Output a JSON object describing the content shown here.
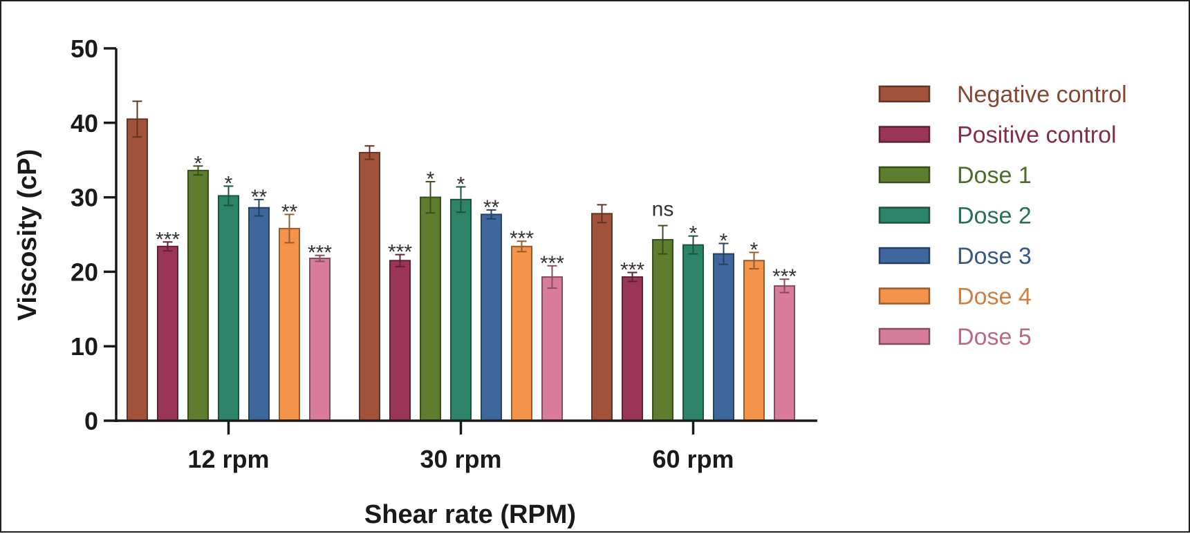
{
  "chart_data": {
    "type": "bar",
    "xlabel": "Shear rate (RPM)",
    "ylabel": "Viscosity (cP)",
    "ylim": [
      0,
      50
    ],
    "yticks": [
      "0",
      "10",
      "20",
      "30",
      "40",
      "50"
    ],
    "categories": [
      "12 rpm",
      "30 rpm",
      "60 rpm"
    ],
    "legend_position": "right",
    "grid": false,
    "series": [
      {
        "name": "Negative control",
        "color": "#A0523A",
        "values": [
          40.5,
          36.0,
          27.8
        ],
        "errors": [
          2.4,
          0.9,
          1.2
        ],
        "significance": [
          "",
          "",
          ""
        ]
      },
      {
        "name": "Positive control",
        "color": "#9B3558",
        "values": [
          23.4,
          21.5,
          19.3
        ],
        "errors": [
          0.6,
          0.8,
          0.6
        ],
        "significance": [
          "***",
          "***",
          "***"
        ]
      },
      {
        "name": "Dose 1",
        "color": "#5C7E2E",
        "values": [
          33.6,
          30.0,
          24.3
        ],
        "errors": [
          0.6,
          2.1,
          1.9
        ],
        "significance": [
          "*",
          "*",
          "ns"
        ]
      },
      {
        "name": "Dose 2",
        "color": "#2B8468",
        "values": [
          30.2,
          29.7,
          23.6
        ],
        "errors": [
          1.3,
          1.7,
          1.2
        ],
        "significance": [
          "*",
          "*",
          "*"
        ]
      },
      {
        "name": "Dose 3",
        "color": "#3E679E",
        "values": [
          28.6,
          27.7,
          22.4
        ],
        "errors": [
          1.1,
          0.6,
          1.4
        ],
        "significance": [
          "**",
          "**",
          "*"
        ]
      },
      {
        "name": "Dose 4",
        "color": "#F3944A",
        "values": [
          25.8,
          23.4,
          21.5
        ],
        "errors": [
          1.9,
          0.7,
          1.1
        ],
        "significance": [
          "**",
          "***",
          "*"
        ]
      },
      {
        "name": "Dose 5",
        "color": "#D97B9A",
        "values": [
          21.8,
          19.3,
          18.1
        ],
        "errors": [
          0.4,
          1.5,
          0.9
        ],
        "significance": [
          "***",
          "***",
          "***"
        ]
      }
    ]
  }
}
